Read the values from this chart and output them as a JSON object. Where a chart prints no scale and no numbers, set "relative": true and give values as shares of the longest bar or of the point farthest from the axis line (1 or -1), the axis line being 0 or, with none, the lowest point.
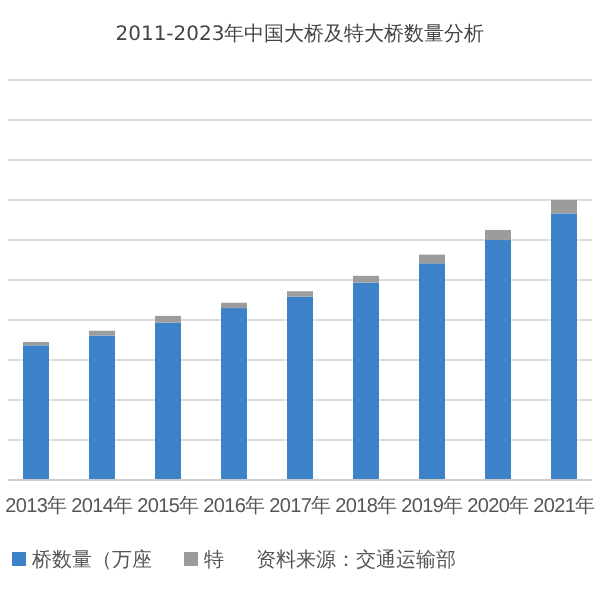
{
  "chart_data": {
    "type": "bar",
    "title": "2011-2023年中国大桥及特大桥数量分析",
    "stacked": true,
    "relative": true,
    "grid": true,
    "legend": "bottom",
    "categories": [
      "2013年",
      "2014年",
      "2015年",
      "2016年",
      "2017年",
      "2018年",
      "2019年",
      "2020年",
      "2021年"
    ],
    "series": [
      {
        "name": "桥数量（万座",
        "color": "#3b82c8",
        "values": [
          0.481,
          0.516,
          0.562,
          0.614,
          0.655,
          0.705,
          0.774,
          0.857,
          0.952
        ]
      },
      {
        "name": "特",
        "color": "#9c9c9c",
        "values": [
          0.012,
          0.017,
          0.024,
          0.019,
          0.019,
          0.024,
          0.031,
          0.036,
          0.048
        ]
      }
    ],
    "annotations": [
      "资料来源：交通运输部"
    ]
  }
}
